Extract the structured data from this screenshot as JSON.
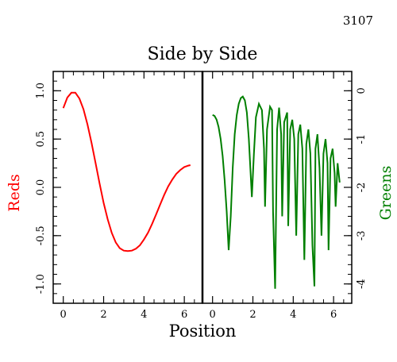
{
  "page_number": "3107",
  "chart_data": [
    {
      "type": "line",
      "panel": "left",
      "title": "Side by Side",
      "xlabel": "Position",
      "ylabel": "Reds",
      "xlim": [
        -0.5,
        6.9
      ],
      "ylim": [
        -1.2,
        1.2
      ],
      "x_ticks": [
        0,
        2,
        4,
        6
      ],
      "x_tick_labels": [
        "0",
        "2",
        "4",
        "6"
      ],
      "y_ticks": [
        1.0,
        0.5,
        0.0,
        -0.5,
        -1.0
      ],
      "y_tick_labels": [
        "1.0",
        "0.5",
        "0.0",
        "-0.5",
        "-1.0"
      ],
      "series": [
        {
          "color": "#ff0000",
          "x": [
            0.0,
            0.2,
            0.4,
            0.6,
            0.8,
            1.0,
            1.2,
            1.4,
            1.6,
            1.8,
            2.0,
            2.2,
            2.4,
            2.6,
            2.8,
            3.0,
            3.2,
            3.4,
            3.6,
            3.8,
            4.0,
            4.2,
            4.4,
            4.6,
            4.8,
            5.0,
            5.2,
            5.4,
            5.6,
            5.8,
            6.0,
            6.2,
            6.3
          ],
          "y": [
            0.82,
            0.93,
            0.98,
            0.98,
            0.92,
            0.81,
            0.65,
            0.46,
            0.25,
            0.04,
            -0.16,
            -0.33,
            -0.47,
            -0.57,
            -0.63,
            -0.655,
            -0.66,
            -0.655,
            -0.635,
            -0.6,
            -0.54,
            -0.47,
            -0.38,
            -0.28,
            -0.18,
            -0.08,
            0.01,
            0.08,
            0.14,
            0.18,
            0.21,
            0.225,
            0.23
          ]
        }
      ]
    },
    {
      "type": "line",
      "panel": "right",
      "ylabel": "Greens",
      "xlim": [
        -0.5,
        6.9
      ],
      "ylim": [
        -4.4,
        0.4
      ],
      "x_ticks": [
        0,
        2,
        4,
        6
      ],
      "x_tick_labels": [
        "0",
        "2",
        "4",
        "6"
      ],
      "y_ticks": [
        0,
        -1,
        -2,
        -3,
        -4
      ],
      "y_tick_labels": [
        "0",
        "-1",
        "-2",
        "-3",
        "-4"
      ],
      "series": [
        {
          "color": "#007f00",
          "x": [
            0.0,
            0.1,
            0.2,
            0.3,
            0.4,
            0.5,
            0.6,
            0.7,
            0.8,
            0.9,
            1.0,
            1.1,
            1.2,
            1.3,
            1.4,
            1.5,
            1.6,
            1.7,
            1.8,
            1.95,
            2.05,
            2.15,
            2.3,
            2.45,
            2.55,
            2.6,
            2.7,
            2.85,
            2.95,
            3.0,
            3.1,
            3.2,
            3.3,
            3.4,
            3.45,
            3.55,
            3.7,
            3.75,
            3.85,
            3.95,
            4.05,
            4.15,
            4.25,
            4.35,
            4.45,
            4.55,
            4.65,
            4.75,
            4.85,
            4.95,
            5.05,
            5.1,
            5.2,
            5.3,
            5.4,
            5.5,
            5.6,
            5.7,
            5.75,
            5.85,
            5.95,
            6.05,
            6.1,
            6.2,
            6.3
          ],
          "y": [
            -0.5,
            -0.52,
            -0.6,
            -0.75,
            -1.0,
            -1.35,
            -1.85,
            -2.5,
            -3.3,
            -2.6,
            -1.6,
            -0.9,
            -0.5,
            -0.27,
            -0.15,
            -0.12,
            -0.2,
            -0.45,
            -1.0,
            -2.2,
            -1.3,
            -0.55,
            -0.27,
            -0.4,
            -1.2,
            -2.4,
            -0.8,
            -0.33,
            -0.4,
            -2.5,
            -4.1,
            -0.8,
            -0.35,
            -0.9,
            -2.6,
            -0.65,
            -0.45,
            -2.8,
            -0.8,
            -0.6,
            -1.0,
            -3.0,
            -0.9,
            -0.7,
            -1.2,
            -3.5,
            -1.1,
            -0.8,
            -1.3,
            -3.2,
            -4.05,
            -1.2,
            -0.9,
            -1.6,
            -3.0,
            -1.3,
            -1.0,
            -1.5,
            -3.3,
            -1.4,
            -1.2,
            -1.7,
            -2.4,
            -1.5,
            -1.9
          ]
        }
      ]
    }
  ]
}
